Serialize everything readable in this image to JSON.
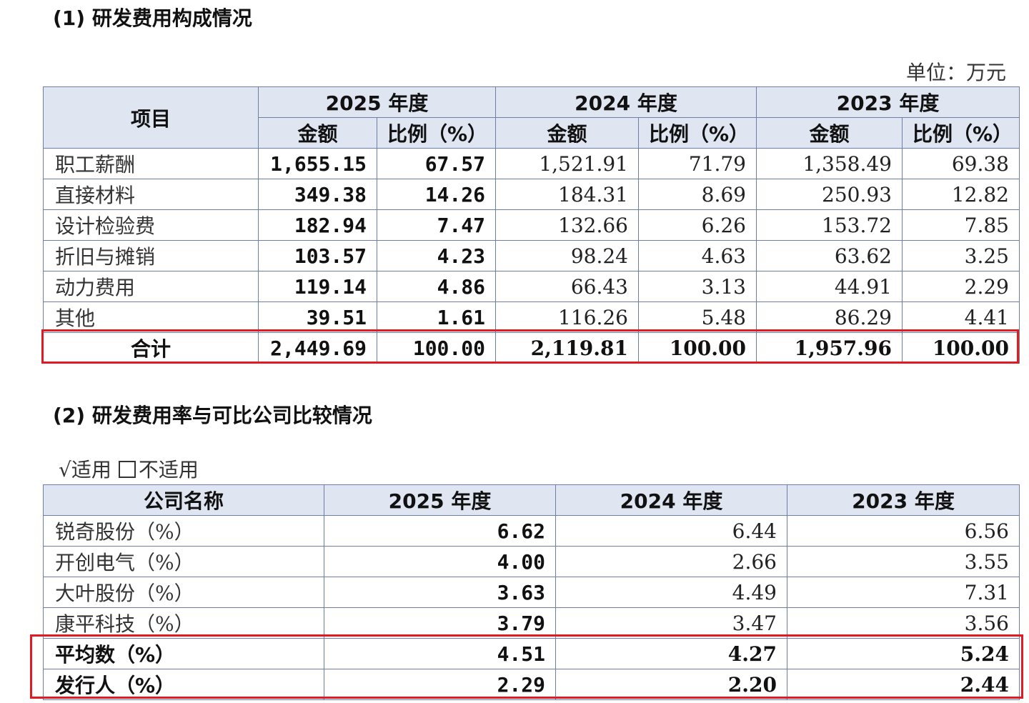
{
  "section1": {
    "heading": "(1)  研发费用构成情况",
    "unit": "单位：万元",
    "header": {
      "item": "项目",
      "years": [
        "2025 年度",
        "2024 年度",
        "2023 年度"
      ],
      "amount": "金额",
      "ratio": "比例（%）"
    },
    "rows": [
      {
        "label": "职工薪酬",
        "values": [
          "1,655.15",
          "67.57",
          "1,521.91",
          "71.79",
          "1,358.49",
          "69.38"
        ]
      },
      {
        "label": "直接材料",
        "values": [
          "349.38",
          "14.26",
          "184.31",
          "8.69",
          "250.93",
          "12.82"
        ]
      },
      {
        "label": "设计检验费",
        "values": [
          "182.94",
          "7.47",
          "132.66",
          "6.26",
          "153.72",
          "7.85"
        ]
      },
      {
        "label": "折旧与摊销",
        "values": [
          "103.57",
          "4.23",
          "98.24",
          "4.63",
          "63.62",
          "3.25"
        ]
      },
      {
        "label": "动力费用",
        "values": [
          "119.14",
          "4.86",
          "66.43",
          "3.13",
          "44.91",
          "2.29"
        ]
      },
      {
        "label": "其他",
        "values": [
          "39.51",
          "1.61",
          "116.26",
          "5.48",
          "86.29",
          "4.41"
        ]
      }
    ],
    "total": {
      "label": "合计",
      "values": [
        "2,449.69",
        "100.00",
        "2,119.81",
        "100.00",
        "1,957.96",
        "100.00"
      ]
    }
  },
  "section2": {
    "heading": "(2)  研发费用率与可比公司比较情况",
    "applicability": {
      "checked": "√适用",
      "unchecked": "不适用"
    },
    "header": [
      "公司名称",
      "2025 年度",
      "2024 年度",
      "2023 年度"
    ],
    "rows": [
      {
        "label": "锐奇股份（%）",
        "values": [
          "6.62",
          "6.44",
          "6.56"
        ]
      },
      {
        "label": "开创电气（%）",
        "values": [
          "4.00",
          "2.66",
          "3.55"
        ]
      },
      {
        "label": "大叶股份（%）",
        "values": [
          "3.63",
          "4.49",
          "7.31"
        ]
      },
      {
        "label": "康平科技（%）",
        "values": [
          "3.79",
          "3.47",
          "3.56"
        ]
      },
      {
        "label": "平均数（%）",
        "values": [
          "4.51",
          "4.27",
          "5.24"
        ]
      },
      {
        "label": "发行人（%）",
        "values": [
          "2.29",
          "2.20",
          "2.44"
        ]
      }
    ]
  },
  "highlight_color": "#e01b22",
  "header_bg": "#dfe6f1",
  "border_color": "#6b7fa8"
}
